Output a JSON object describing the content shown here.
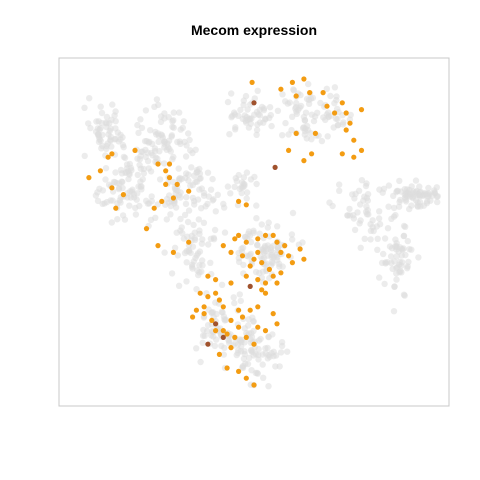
{
  "chart_data": {
    "type": "scatter",
    "title": "Mecom expression",
    "xlabel": "",
    "ylabel": "",
    "xlim": [
      0,
      100
    ],
    "ylim": [
      0,
      100
    ],
    "grid": false,
    "legend": "none",
    "colors": {
      "background": "#dcdcdc",
      "expressed": "#f39c12",
      "high": "#a0522d",
      "frame": "#c8c8c8"
    },
    "clusters": [
      {
        "cx": 12,
        "cy": 79,
        "sx": 4,
        "sy": 6,
        "n": 55
      },
      {
        "cx": 18,
        "cy": 62,
        "sx": 6,
        "sy": 8,
        "n": 90
      },
      {
        "cx": 26,
        "cy": 77,
        "sx": 6,
        "sy": 6,
        "n": 80
      },
      {
        "cx": 33,
        "cy": 62,
        "sx": 5,
        "sy": 6,
        "n": 70
      },
      {
        "cx": 36,
        "cy": 44,
        "sx": 6,
        "sy": 8,
        "n": 60
      },
      {
        "cx": 50,
        "cy": 85,
        "sx": 5,
        "sy": 4,
        "n": 50
      },
      {
        "cx": 65,
        "cy": 85,
        "sx": 6,
        "sy": 6,
        "n": 80
      },
      {
        "cx": 47,
        "cy": 63,
        "sx": 3,
        "sy": 4,
        "n": 25
      },
      {
        "cx": 53,
        "cy": 44,
        "sx": 6,
        "sy": 7,
        "n": 90
      },
      {
        "cx": 42,
        "cy": 22,
        "sx": 6,
        "sy": 6,
        "n": 80
      },
      {
        "cx": 51,
        "cy": 14,
        "sx": 5,
        "sy": 5,
        "n": 60
      },
      {
        "cx": 78,
        "cy": 56,
        "sx": 5,
        "sy": 6,
        "n": 50
      },
      {
        "cx": 87,
        "cy": 43,
        "sx": 4,
        "sy": 8,
        "n": 60
      },
      {
        "cx": 90,
        "cy": 61,
        "sx": 3,
        "sy": 3,
        "n": 40
      },
      {
        "cx": 95,
        "cy": 60,
        "sx": 3,
        "sy": 2,
        "n": 30
      }
    ],
    "expressed_points": [
      [
        49.5,
        94
      ],
      [
        57,
        92
      ],
      [
        60,
        94
      ],
      [
        61,
        90
      ],
      [
        63,
        95
      ],
      [
        64.5,
        91
      ],
      [
        68,
        91
      ],
      [
        73,
        88
      ],
      [
        69,
        87
      ],
      [
        74,
        85
      ],
      [
        71,
        85
      ],
      [
        78,
        86
      ],
      [
        75,
        82
      ],
      [
        66,
        79
      ],
      [
        74,
        80
      ],
      [
        76,
        77
      ],
      [
        61,
        79
      ],
      [
        73,
        73
      ],
      [
        65,
        73
      ],
      [
        78,
        74
      ],
      [
        76,
        72
      ],
      [
        59,
        74
      ],
      [
        63,
        71
      ],
      [
        19,
        74
      ],
      [
        13,
        73
      ],
      [
        12,
        72
      ],
      [
        10,
        68
      ],
      [
        7,
        66
      ],
      [
        13,
        63
      ],
      [
        14,
        57
      ],
      [
        16,
        61
      ],
      [
        25,
        70
      ],
      [
        27,
        68
      ],
      [
        28,
        70
      ],
      [
        28,
        66
      ],
      [
        27,
        64
      ],
      [
        30,
        64
      ],
      [
        29,
        60
      ],
      [
        33,
        62
      ],
      [
        26,
        59
      ],
      [
        24,
        57
      ],
      [
        22,
        51
      ],
      [
        25,
        46
      ],
      [
        29,
        44
      ],
      [
        33,
        47
      ],
      [
        46,
        59
      ],
      [
        48,
        58
      ],
      [
        46,
        49
      ],
      [
        48,
        47
      ],
      [
        45,
        48
      ],
      [
        42,
        46
      ],
      [
        44,
        44
      ],
      [
        47,
        43
      ],
      [
        51,
        48
      ],
      [
        53,
        49
      ],
      [
        55,
        49
      ],
      [
        56,
        47
      ],
      [
        58,
        46
      ],
      [
        57,
        44
      ],
      [
        59,
        43
      ],
      [
        60,
        41
      ],
      [
        63,
        42
      ],
      [
        62,
        45
      ],
      [
        51,
        44
      ],
      [
        50,
        42
      ],
      [
        52,
        41
      ],
      [
        49,
        40
      ],
      [
        48,
        37
      ],
      [
        51,
        36
      ],
      [
        53,
        35
      ],
      [
        55,
        37
      ],
      [
        57,
        38
      ],
      [
        54,
        39
      ],
      [
        56,
        35
      ],
      [
        53,
        32
      ],
      [
        52,
        33
      ],
      [
        40,
        36
      ],
      [
        38,
        37
      ],
      [
        44,
        35
      ],
      [
        40,
        32
      ],
      [
        36,
        32
      ],
      [
        38,
        31
      ],
      [
        41,
        30
      ],
      [
        42,
        28
      ],
      [
        37,
        28
      ],
      [
        35,
        27
      ],
      [
        34,
        25
      ],
      [
        37,
        26
      ],
      [
        39,
        24
      ],
      [
        40,
        21
      ],
      [
        43,
        20
      ],
      [
        46,
        22
      ],
      [
        47,
        25
      ],
      [
        49,
        27
      ],
      [
        51,
        28
      ],
      [
        48,
        19
      ],
      [
        50,
        17
      ],
      [
        44,
        16
      ],
      [
        41,
        14
      ],
      [
        42,
        21
      ],
      [
        45,
        19
      ],
      [
        51,
        22
      ],
      [
        53,
        21
      ],
      [
        56,
        23
      ],
      [
        55,
        26
      ],
      [
        43,
        10
      ],
      [
        46,
        9
      ],
      [
        48,
        7
      ],
      [
        50,
        5
      ],
      [
        44,
        24
      ],
      [
        46,
        27
      ]
    ],
    "high_points": [
      [
        50,
        88
      ],
      [
        55.5,
        69
      ],
      [
        49,
        34
      ],
      [
        38,
        17
      ],
      [
        42,
        19
      ],
      [
        40,
        23
      ]
    ]
  }
}
